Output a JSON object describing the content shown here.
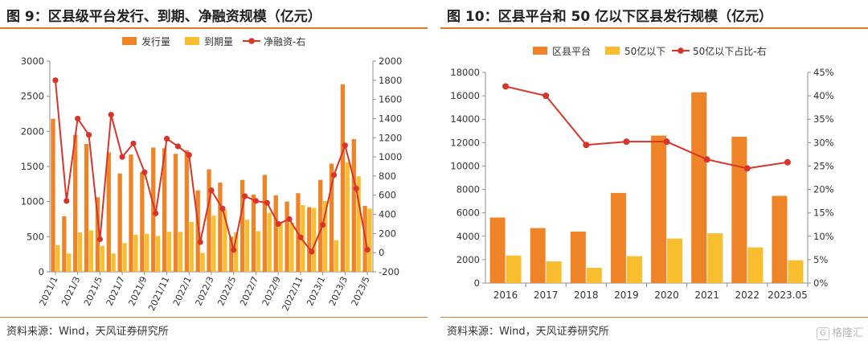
{
  "chart_data": [
    {
      "type": "bar",
      "title": "图 9：区县级平台发行、到期、净融资规模（亿元）",
      "source": "资料来源：Wind，天风证券研究所",
      "categories": [
        "2021/1",
        "2021/2",
        "2021/3",
        "2021/4",
        "2021/5",
        "2021/6",
        "2021/7",
        "2021/8",
        "2021/9",
        "2021/10",
        "2021/11",
        "2021/12",
        "2022/1",
        "2022/2",
        "2022/3",
        "2022/4",
        "2022/5",
        "2022/6",
        "2022/7",
        "2022/8",
        "2022/9",
        "2022/10",
        "2022/11",
        "2022/12",
        "2023/1",
        "2023/2",
        "2023/3",
        "2023/4",
        "2023/5"
      ],
      "tick_labels": [
        "2021/1",
        "2021/3",
        "2021/5",
        "2021/7",
        "2021/9",
        "2021/11",
        "2022/1",
        "2022/3",
        "2022/5",
        "2022/7",
        "2022/9",
        "2022/11",
        "2023/1",
        "2023/3",
        "2023/5"
      ],
      "series": [
        {
          "name": "发行量",
          "kind": "bar",
          "axis": "left",
          "color": "#ee8427",
          "values": [
            2180,
            790,
            1950,
            1820,
            1060,
            1700,
            1400,
            1670,
            1420,
            1770,
            1760,
            1680,
            1730,
            1160,
            1460,
            1270,
            500,
            1310,
            1100,
            1380,
            1090,
            1000,
            1120,
            920,
            1310,
            1540,
            2670,
            1890,
            940
          ]
        },
        {
          "name": "到期量",
          "kind": "bar",
          "axis": "left",
          "color": "#f9be2f",
          "values": [
            380,
            260,
            560,
            590,
            370,
            260,
            410,
            530,
            540,
            510,
            570,
            570,
            710,
            270,
            800,
            880,
            560,
            740,
            580,
            840,
            700,
            700,
            950,
            910,
            1010,
            450,
            1560,
            1360,
            900
          ]
        },
        {
          "name": "净融资-右",
          "kind": "line",
          "axis": "right",
          "color": "#d8352a",
          "values": [
            1800,
            540,
            1400,
            1230,
            140,
            1440,
            1000,
            1140,
            840,
            410,
            1190,
            1110,
            1020,
            110,
            650,
            460,
            30,
            590,
            540,
            520,
            300,
            350,
            160,
            10,
            290,
            810,
            1120,
            670,
            30
          ]
        }
      ],
      "left_axis": {
        "min": 0,
        "max": 3000,
        "ticks": [
          0,
          500,
          1000,
          1500,
          2000,
          2500,
          3000
        ]
      },
      "right_axis": {
        "min": -200,
        "max": 2000,
        "ticks": [
          -200,
          0,
          200,
          400,
          600,
          800,
          1000,
          1200,
          1400,
          1600,
          1800,
          2000
        ]
      },
      "legend_placement": "top",
      "grid": false
    },
    {
      "type": "bar",
      "title": "图 10：区县平台和 50 亿以下区县发行规模（亿元）",
      "source": "资料来源：Wind，天风证券研究所",
      "categories": [
        "2016",
        "2017",
        "2018",
        "2019",
        "2020",
        "2021",
        "2022",
        "2023.05"
      ],
      "tick_labels": [
        "2016",
        "2017",
        "2018",
        "2019",
        "2020",
        "2021",
        "2022",
        "2023.05"
      ],
      "series": [
        {
          "name": "区县平台",
          "kind": "bar",
          "axis": "left",
          "color": "#ee8427",
          "values": [
            5600,
            4700,
            4400,
            7700,
            12600,
            16300,
            12500,
            7450
          ]
        },
        {
          "name": "50亿以下",
          "kind": "bar",
          "axis": "left",
          "color": "#f9be2f",
          "values": [
            2350,
            1850,
            1300,
            2300,
            3800,
            4250,
            3050,
            1950
          ]
        },
        {
          "name": "50亿以下占比-右",
          "kind": "line",
          "axis": "right",
          "color": "#d8352a",
          "values": [
            42.0,
            40.0,
            29.5,
            30.2,
            30.2,
            26.4,
            24.5,
            25.8
          ]
        }
      ],
      "left_axis": {
        "min": 0,
        "max": 18000,
        "ticks": [
          0,
          2000,
          4000,
          6000,
          8000,
          10000,
          12000,
          14000,
          16000,
          18000
        ]
      },
      "right_axis": {
        "min": 0,
        "max": 45,
        "ticks": [
          0,
          5,
          10,
          15,
          20,
          25,
          30,
          35,
          40,
          45
        ],
        "format": "percent"
      },
      "legend_placement": "top",
      "grid": false
    }
  ],
  "watermark": {
    "logo": "G",
    "text": "格隆汇"
  }
}
